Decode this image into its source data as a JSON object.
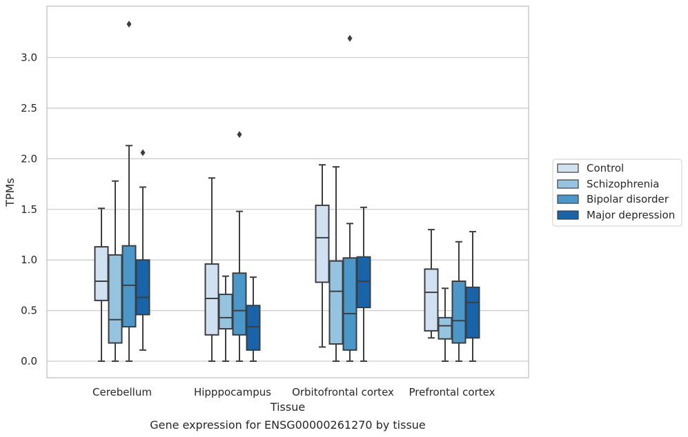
{
  "chart_data": {
    "type": "box",
    "xlabel": "Tissue",
    "ylabel": "TPMs",
    "caption": "Gene expression for ENSG00000261270 by tissue",
    "ylim": [
      -0.16,
      3.5
    ],
    "yticks": [
      "0.0",
      "0.5",
      "1.0",
      "1.5",
      "2.0",
      "2.5",
      "3.0"
    ],
    "ytick_values": [
      0,
      0.5,
      1.0,
      1.5,
      2.0,
      2.5,
      3.0
    ],
    "grid": "horizontal",
    "legend_position": "right",
    "categories": [
      "Cerebellum",
      "Hipppocampus",
      "Orbitofrontal cortex",
      "Prefrontal cortex"
    ],
    "colors": [
      "#d0e1f2",
      "#94c4df",
      "#4a98c9",
      "#1764ab"
    ],
    "series": [
      {
        "name": "Control",
        "boxes": [
          {
            "whisker_low": 0.0,
            "q1": 0.6,
            "median": 0.79,
            "q3": 1.13,
            "whisker_high": 1.51,
            "outliers": []
          },
          {
            "whisker_low": 0.0,
            "q1": 0.26,
            "median": 0.62,
            "q3": 0.96,
            "whisker_high": 1.81,
            "outliers": []
          },
          {
            "whisker_low": 0.14,
            "q1": 0.78,
            "median": 1.22,
            "q3": 1.54,
            "whisker_high": 1.94,
            "outliers": []
          },
          {
            "whisker_low": 0.23,
            "q1": 0.3,
            "median": 0.68,
            "q3": 0.91,
            "whisker_high": 1.3,
            "outliers": []
          }
        ]
      },
      {
        "name": "Schizophrenia",
        "boxes": [
          {
            "whisker_low": 0.0,
            "q1": 0.18,
            "median": 0.41,
            "q3": 1.05,
            "whisker_high": 1.78,
            "outliers": []
          },
          {
            "whisker_low": 0.0,
            "q1": 0.32,
            "median": 0.43,
            "q3": 0.66,
            "whisker_high": 0.84,
            "outliers": []
          },
          {
            "whisker_low": 0.0,
            "q1": 0.17,
            "median": 0.69,
            "q3": 0.99,
            "whisker_high": 1.92,
            "outliers": []
          },
          {
            "whisker_low": 0.0,
            "q1": 0.22,
            "median": 0.35,
            "q3": 0.43,
            "whisker_high": 0.72,
            "outliers": []
          }
        ]
      },
      {
        "name": "Bipolar disorder",
        "boxes": [
          {
            "whisker_low": 0.0,
            "q1": 0.34,
            "median": 0.75,
            "q3": 1.14,
            "whisker_high": 2.13,
            "outliers": [
              3.33
            ]
          },
          {
            "whisker_low": 0.0,
            "q1": 0.26,
            "median": 0.5,
            "q3": 0.87,
            "whisker_high": 1.48,
            "outliers": [
              2.24
            ]
          },
          {
            "whisker_low": 0.0,
            "q1": 0.11,
            "median": 0.47,
            "q3": 1.02,
            "whisker_high": 1.36,
            "outliers": [
              3.19
            ]
          },
          {
            "whisker_low": 0.0,
            "q1": 0.18,
            "median": 0.4,
            "q3": 0.79,
            "whisker_high": 1.18,
            "outliers": []
          }
        ]
      },
      {
        "name": "Major depression",
        "boxes": [
          {
            "whisker_low": 0.11,
            "q1": 0.46,
            "median": 0.63,
            "q3": 1.0,
            "whisker_high": 1.72,
            "outliers": [
              2.06
            ]
          },
          {
            "whisker_low": 0.0,
            "q1": 0.11,
            "median": 0.34,
            "q3": 0.55,
            "whisker_high": 0.83,
            "outliers": []
          },
          {
            "whisker_low": 0.0,
            "q1": 0.53,
            "median": 0.79,
            "q3": 1.03,
            "whisker_high": 1.52,
            "outliers": []
          },
          {
            "whisker_low": 0.0,
            "q1": 0.23,
            "median": 0.58,
            "q3": 0.73,
            "whisker_high": 1.28,
            "outliers": []
          }
        ]
      }
    ]
  }
}
